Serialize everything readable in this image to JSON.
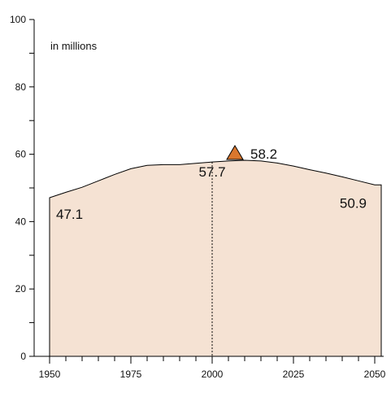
{
  "chart_data": {
    "type": "area",
    "title": "",
    "xlabel": "",
    "ylabel": "",
    "unit_label": "in millions",
    "xlim": [
      1950,
      2052
    ],
    "ylim": [
      0,
      100
    ],
    "x_ticks": [
      1950,
      1975,
      2000,
      2025,
      2050
    ],
    "y_ticks": [
      0,
      20,
      40,
      60,
      80,
      100
    ],
    "grid": false,
    "colors": {
      "fill": "#f5e2d3",
      "line": "#000000",
      "marker": "#d9772e"
    },
    "series": [
      {
        "x": [
          1950,
          1955,
          1960,
          1965,
          1970,
          1975,
          1980,
          1985,
          1990,
          1995,
          2000,
          2005,
          2010,
          2015,
          2020,
          2025,
          2030,
          2035,
          2040,
          2045,
          2050,
          2052
        ],
        "values": [
          47.1,
          48.7,
          50.2,
          52.1,
          54.0,
          55.7,
          56.7,
          56.9,
          56.9,
          57.3,
          57.7,
          58.0,
          58.2,
          58.0,
          57.4,
          56.5,
          55.4,
          54.4,
          53.3,
          52.1,
          50.9,
          50.9
        ]
      }
    ],
    "annotations": [
      {
        "label": "47.1",
        "x": 1950,
        "y": 47.1
      },
      {
        "label": "57.7",
        "x": 2000,
        "y": 57.7
      },
      {
        "label": "58.2",
        "x": 2007,
        "y": 58.2,
        "marker": "triangle"
      },
      {
        "label": "50.9",
        "x": 2050,
        "y": 50.9
      }
    ],
    "reference_line": {
      "x": 2000,
      "style": "dotted"
    }
  }
}
